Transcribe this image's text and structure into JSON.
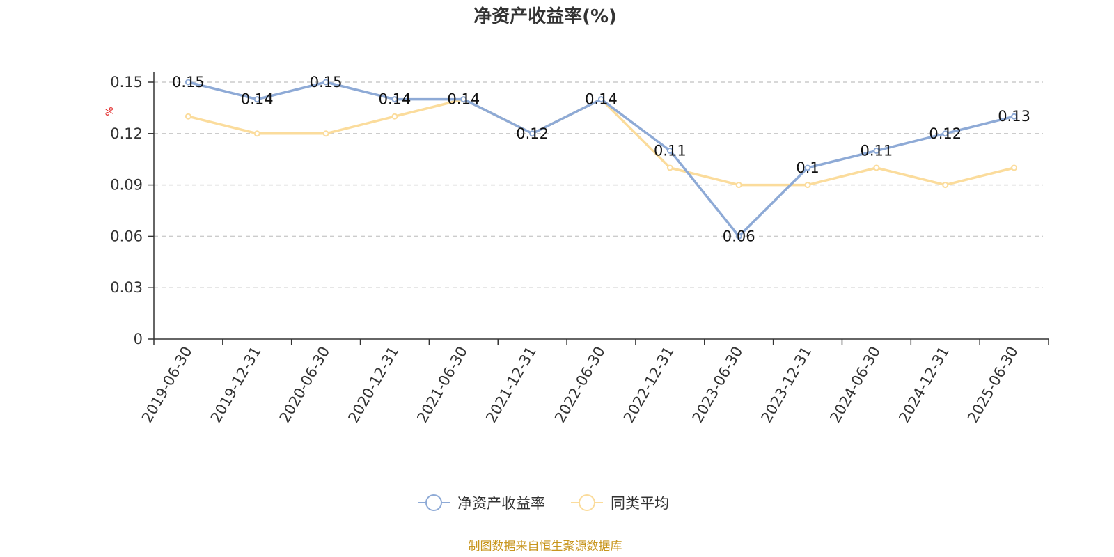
{
  "chart_data": {
    "type": "line",
    "title": "净资产收益率(%)",
    "ylabel": "%",
    "xlabel": "",
    "ylim": [
      0,
      0.15
    ],
    "yticks": [
      "0",
      "0.03",
      "0.06",
      "0.09",
      "0.12",
      "0.15"
    ],
    "ytick_values": [
      0,
      0.03,
      0.06,
      0.09,
      0.12,
      0.15
    ],
    "categories": [
      "2019-06-30",
      "2019-12-31",
      "2020-06-30",
      "2020-12-31",
      "2021-06-30",
      "2021-12-31",
      "2022-06-30",
      "2022-12-31",
      "2023-06-30",
      "2023-12-31",
      "2024-06-30",
      "2024-12-31",
      "2025-06-30"
    ],
    "series": [
      {
        "name": "净资产收益率",
        "color": "#8eaad6",
        "values": [
          0.15,
          0.14,
          0.15,
          0.14,
          0.14,
          0.12,
          0.14,
          0.11,
          0.06,
          0.1,
          0.11,
          0.12,
          0.13
        ],
        "labels": [
          "0.15",
          "0.14",
          "0.15",
          "0.14",
          "0.14",
          "0.12",
          "0.14",
          "0.11",
          "0.06",
          "0.1",
          "0.11",
          "0.12",
          "0.13"
        ]
      },
      {
        "name": "同类平均",
        "color": "#fbdc9c",
        "values": [
          0.13,
          0.12,
          0.12,
          0.13,
          0.14,
          0.12,
          0.14,
          0.1,
          0.09,
          0.09,
          0.1,
          0.09,
          0.1
        ]
      }
    ],
    "grid": true,
    "legend_position": "bottom-center"
  },
  "source_note": "制图数据来自恒生聚源数据库"
}
